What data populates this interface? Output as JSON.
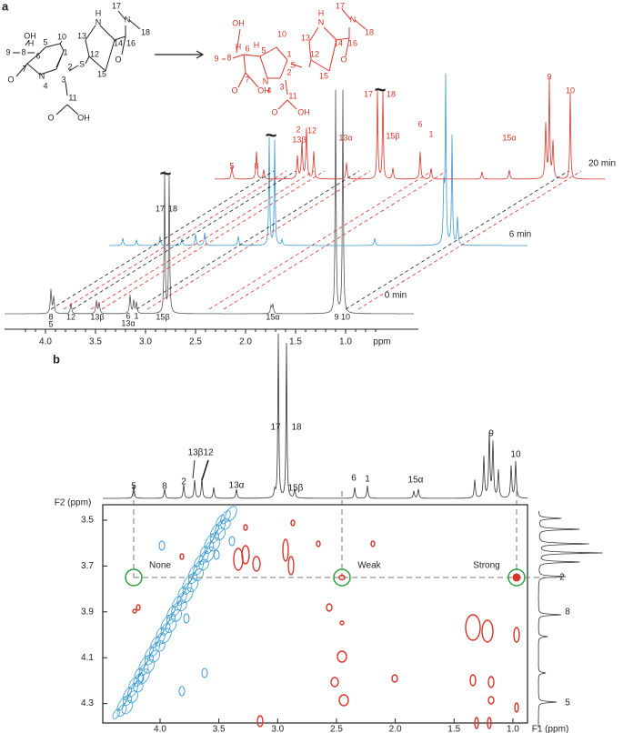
{
  "panel_a": {
    "label": "a",
    "reactant_atoms": [
      "OH",
      "9",
      "8",
      "H",
      "6",
      "10",
      "5",
      "1",
      "7",
      "O",
      "N",
      "4",
      "2",
      "3",
      "S",
      "12",
      "13",
      "15",
      "14",
      "N",
      "H",
      "16",
      "N",
      "17",
      "18",
      "O",
      "11",
      "O",
      "OH"
    ],
    "product_atoms": [
      "OH",
      "9",
      "8",
      "H",
      "6",
      "10",
      "5",
      "1",
      "H",
      "7",
      "O",
      "OH",
      "N",
      "4",
      "2",
      "3",
      "S",
      "12",
      "13",
      "15",
      "14",
      "N",
      "H",
      "16",
      "N",
      "17",
      "18",
      "O",
      "11",
      "O",
      "OH"
    ],
    "break_mark": "~",
    "spectra": [
      {
        "time": "20 min",
        "peak_labels": [
          "5",
          "8",
          "2",
          "13β",
          "12",
          "13α",
          "17",
          "18",
          "15β",
          "6",
          "1",
          "15α",
          "9",
          "10"
        ]
      },
      {
        "time": "6 min"
      },
      {
        "time": "0 min",
        "peak_labels": [
          "8",
          "5",
          "12",
          "13β",
          "6",
          "13α",
          "1",
          "15β",
          "15α",
          "9",
          "10",
          "17",
          "18"
        ]
      }
    ],
    "axis": {
      "ticks": [
        "4.0",
        "3.5",
        "3.0",
        "2.5",
        "2.0",
        "1.5",
        "1.0"
      ],
      "unit": "ppm"
    }
  },
  "panel_b": {
    "label": "b",
    "top_peak_labels": [
      "5",
      "8",
      "2",
      "13β",
      "12",
      "13α",
      "17",
      "18",
      "15β",
      "6",
      "1",
      "15α",
      "9",
      "10"
    ],
    "right_peak_labels": [
      "2",
      "8",
      "5"
    ],
    "f2_label": "F2 (ppm)",
    "f2_ticks": [
      "3.5",
      "3.7",
      "3.9",
      "4.1",
      "4.3"
    ],
    "f1_label": "F1 (ppm)",
    "f1_ticks": [
      "4.0",
      "3.5",
      "3.0",
      "2.5",
      "2.0",
      "1.5",
      "1.0"
    ],
    "annotations": [
      "None",
      "Weak",
      "Strong"
    ]
  }
}
